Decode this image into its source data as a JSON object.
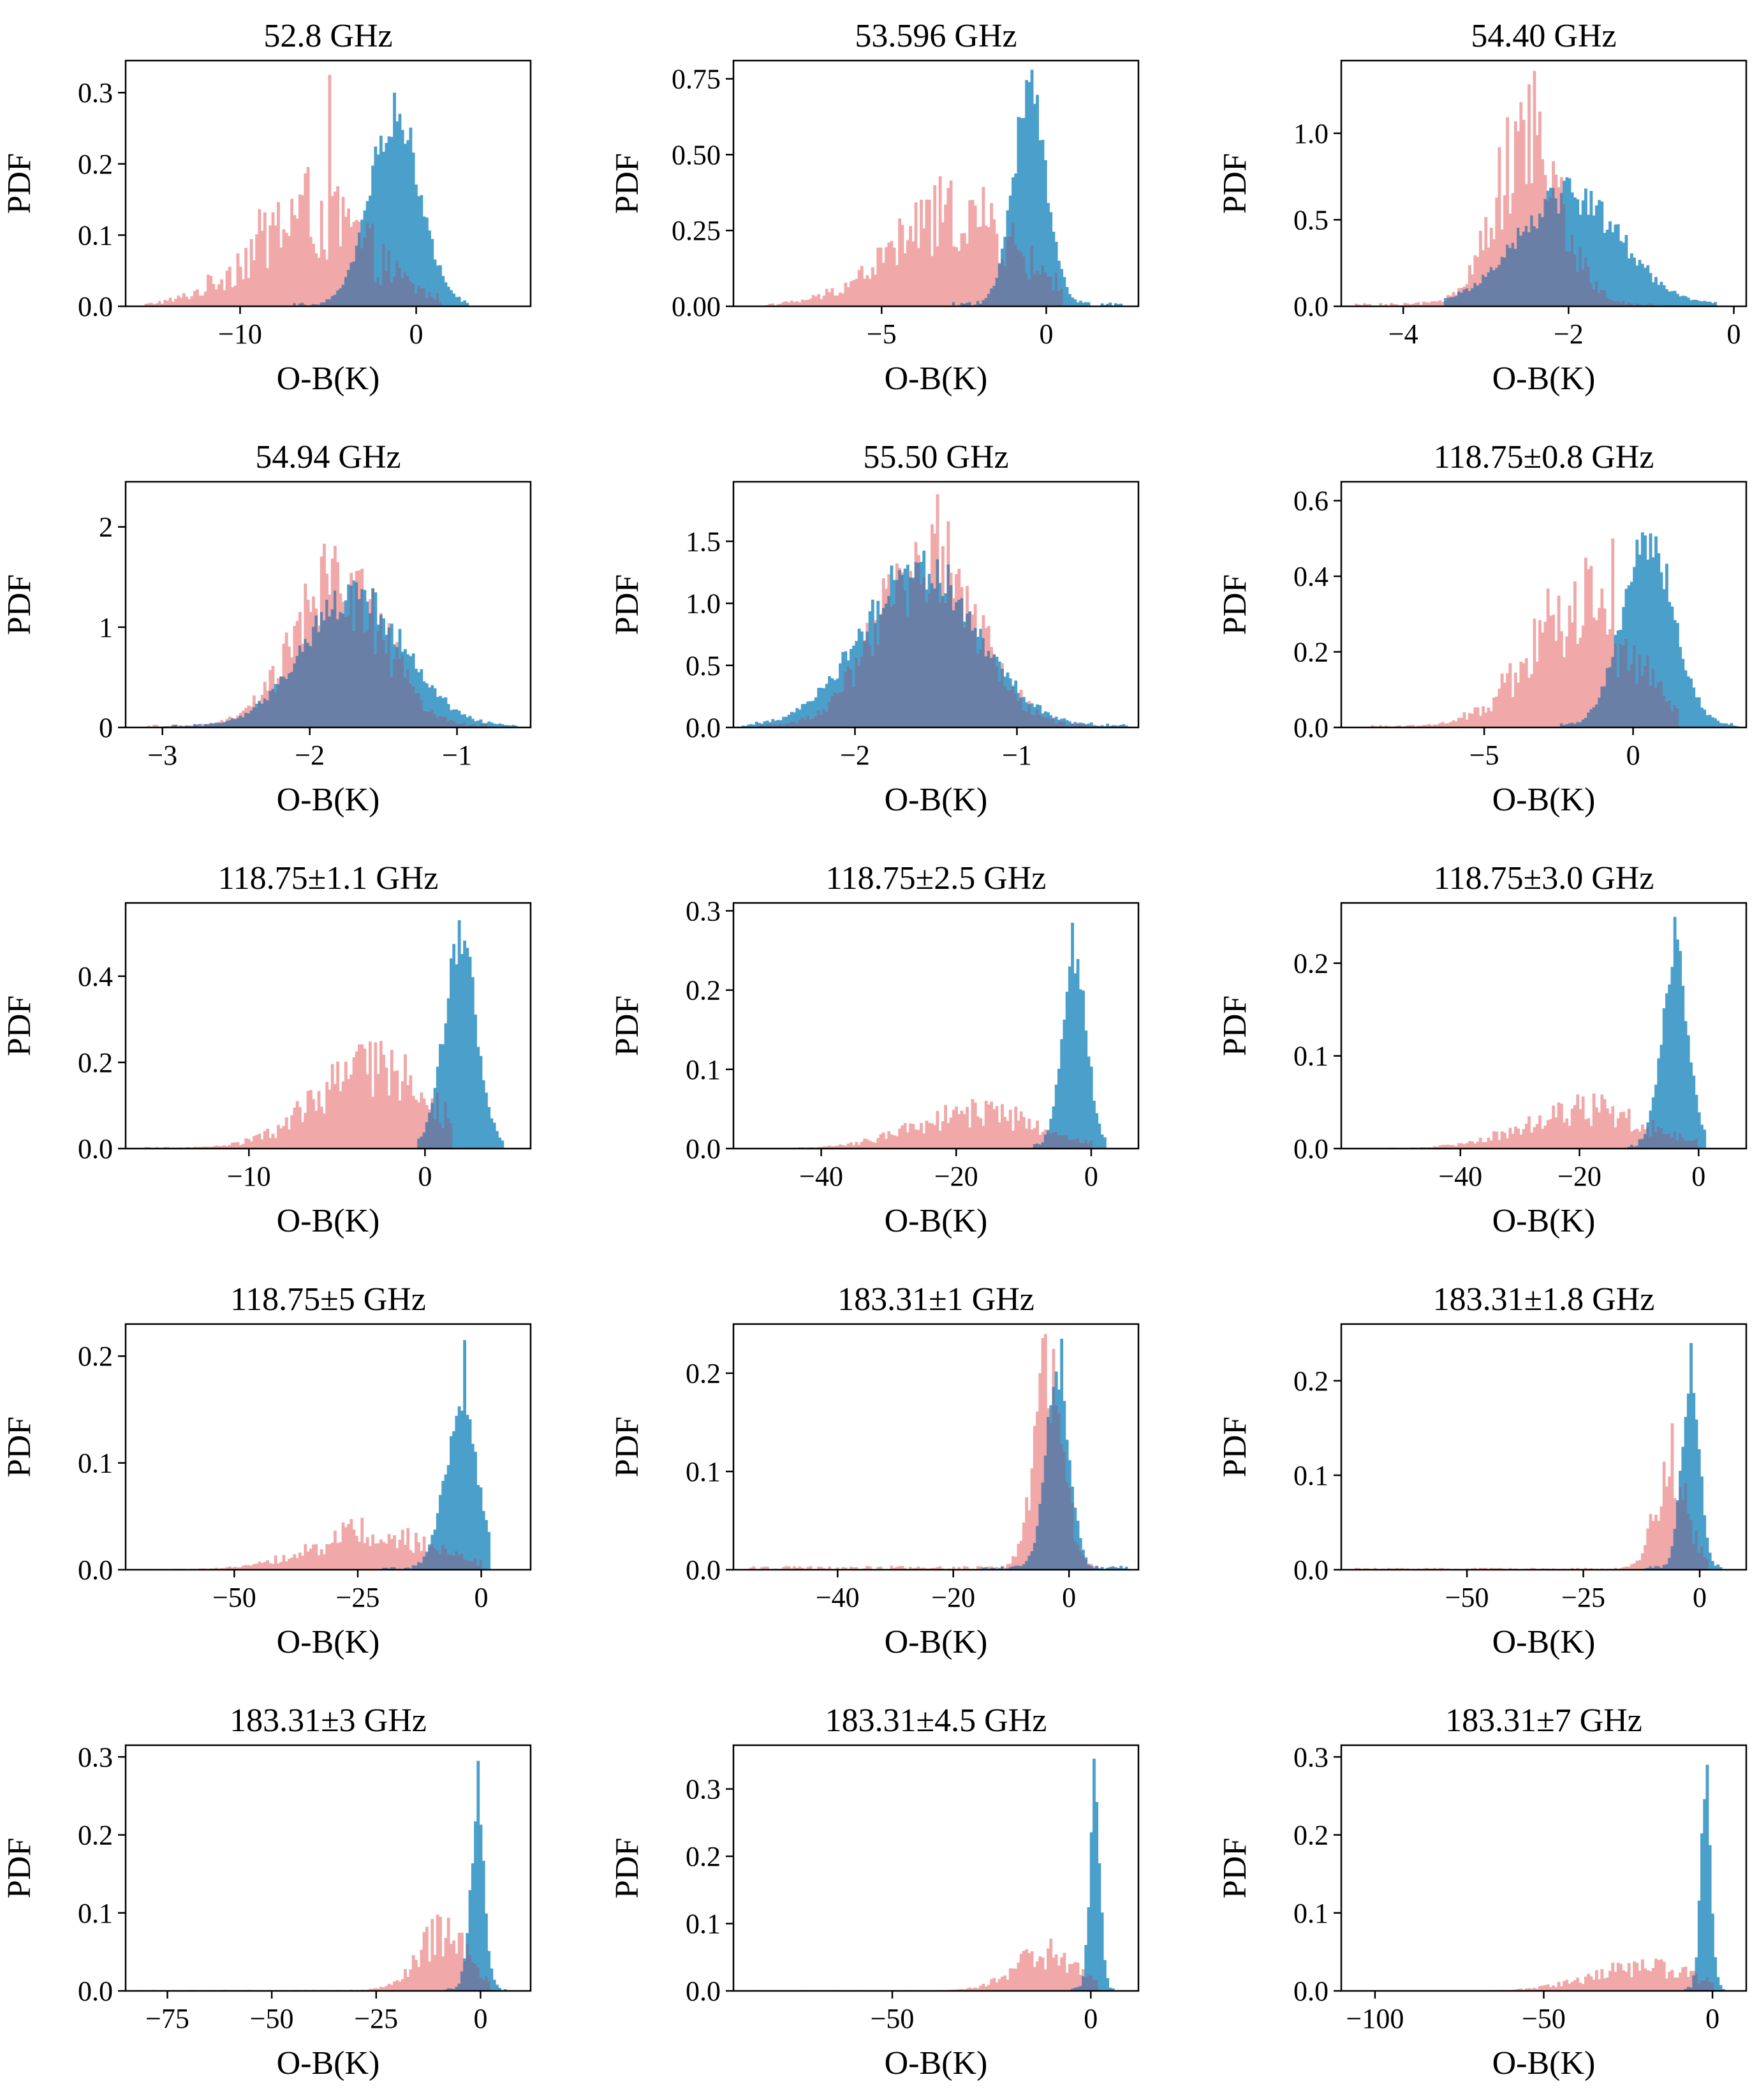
{
  "figure": {
    "ylabel": "PDF",
    "xlabel": "O-B(K)",
    "colors": {
      "series_a": "#f0a8a8",
      "series_b": "#4a9fcb",
      "overlap": "#6a7fa6"
    }
  },
  "chart_data": [
    {
      "type": "histogram",
      "title": "52.8 GHz",
      "xlabel": "O-B(K)",
      "ylabel": "PDF",
      "xlim": [
        -16.5,
        6.5
      ],
      "ylim": [
        0,
        0.345
      ],
      "xticks": [
        -10,
        0
      ],
      "xtick_labels": [
        "−10",
        "0"
      ],
      "yticks": [
        0,
        0.1,
        0.2,
        0.3
      ],
      "ytick_labels": [
        "0.0",
        "0.1",
        "0.2",
        "0.3"
      ],
      "series": [
        {
          "name": "series_a",
          "mean": -6,
          "sd": 3.3,
          "peak": 0.13,
          "noise": 0.55,
          "support": [
            -15.5,
            1.5
          ],
          "spike": {
            "x": -5,
            "y": 0.325
          }
        },
        {
          "name": "series_b",
          "mean": -1.2,
          "sd": 1.4,
          "peak": 0.27,
          "noise": 0.12,
          "support": [
            -7,
            3
          ],
          "spike": {
            "x": -1.3,
            "y": 0.3
          }
        }
      ]
    },
    {
      "type": "histogram",
      "title": "53.596 GHz",
      "xlabel": "O-B(K)",
      "ylabel": "PDF",
      "xlim": [
        -9.5,
        2.8
      ],
      "ylim": [
        0,
        0.81
      ],
      "xticks": [
        -5,
        0
      ],
      "xtick_labels": [
        "−5",
        "0"
      ],
      "yticks": [
        0,
        0.25,
        0.5,
        0.75
      ],
      "ytick_labels": [
        "0.00",
        "0.25",
        "0.50",
        "0.75"
      ],
      "series": [
        {
          "name": "series_a",
          "mean": -2.8,
          "sd": 1.9,
          "peak": 0.3,
          "noise": 0.45,
          "support": [
            -8.5,
            0.5
          ],
          "spike": null
        },
        {
          "name": "series_b",
          "mean": -0.5,
          "sd": 0.5,
          "peak": 0.7,
          "noise": 0.12,
          "support": [
            -3,
            2.3
          ],
          "spike": {
            "x": -0.4,
            "y": 0.78
          }
        }
      ]
    },
    {
      "type": "histogram",
      "title": "54.40 GHz",
      "xlabel": "O-B(K)",
      "ylabel": "PDF",
      "xlim": [
        -4.75,
        0.15
      ],
      "ylim": [
        0,
        1.42
      ],
      "xticks": [
        -4,
        -2,
        0
      ],
      "xtick_labels": [
        "−4",
        "−2",
        "0"
      ],
      "yticks": [
        0,
        0.5,
        1.0
      ],
      "ytick_labels": [
        "0.0",
        "0.5",
        "1.0"
      ],
      "series": [
        {
          "name": "series_a",
          "mean": -2.5,
          "sd": 0.4,
          "peak": 0.95,
          "noise": 0.4,
          "support": [
            -4.6,
            -0.8
          ],
          "spike": {
            "x": -2.4,
            "y": 1.36
          }
        },
        {
          "name": "series_b",
          "mean": -2.0,
          "sd": 0.62,
          "peak": 0.65,
          "noise": 0.18,
          "support": [
            -3.5,
            -0.2
          ],
          "spike": null
        }
      ]
    },
    {
      "type": "histogram",
      "title": "54.94 GHz",
      "xlabel": "O-B(K)",
      "ylabel": "PDF",
      "xlim": [
        -3.25,
        -0.5
      ],
      "ylim": [
        0,
        2.45
      ],
      "xticks": [
        -3,
        -2,
        -1
      ],
      "xtick_labels": [
        "−3",
        "−2",
        "−1"
      ],
      "yticks": [
        0,
        1,
        2
      ],
      "ytick_labels": [
        "0",
        "1",
        "2"
      ],
      "series": [
        {
          "name": "series_a",
          "mean": -1.8,
          "sd": 0.3,
          "peak": 1.45,
          "noise": 0.35,
          "support": [
            -3.1,
            -0.8
          ],
          "spike": null
        },
        {
          "name": "series_b",
          "mean": -1.7,
          "sd": 0.34,
          "peak": 1.3,
          "noise": 0.15,
          "support": [
            -3.0,
            -0.6
          ],
          "spike": null
        }
      ]
    },
    {
      "type": "histogram",
      "title": "55.50 GHz",
      "xlabel": "O-B(K)",
      "ylabel": "PDF",
      "xlim": [
        -2.75,
        -0.25
      ],
      "ylim": [
        0,
        1.98
      ],
      "xticks": [
        -2,
        -1
      ],
      "xtick_labels": [
        "−2",
        "−1"
      ],
      "yticks": [
        0,
        0.5,
        1.0,
        1.5
      ],
      "ytick_labels": [
        "0.0",
        "0.5",
        "1.0",
        "1.5"
      ],
      "series": [
        {
          "name": "series_a",
          "mean": -1.55,
          "sd": 0.3,
          "peak": 1.35,
          "noise": 0.35,
          "support": [
            -2.6,
            -0.5
          ],
          "spike": {
            "x": -1.5,
            "y": 1.88
          }
        },
        {
          "name": "series_b",
          "mean": -1.6,
          "sd": 0.35,
          "peak": 1.3,
          "noise": 0.15,
          "support": [
            -2.7,
            -0.3
          ],
          "spike": null
        }
      ]
    },
    {
      "type": "histogram",
      "title": "118.75±0.8 GHz",
      "xlabel": "O-B(K)",
      "ylabel": "PDF",
      "xlim": [
        -9.8,
        3.8
      ],
      "ylim": [
        0,
        0.65
      ],
      "xticks": [
        -5,
        0
      ],
      "xtick_labels": [
        "−5",
        "0"
      ],
      "yticks": [
        0,
        0.2,
        0.4,
        0.6
      ],
      "ytick_labels": [
        "0.0",
        "0.2",
        "0.4",
        "0.6"
      ],
      "series": [
        {
          "name": "series_a",
          "mean": -1.8,
          "sd": 1.7,
          "peak": 0.32,
          "noise": 0.45,
          "support": [
            -9,
            1.5
          ],
          "spike": {
            "x": -0.7,
            "y": 0.5
          }
        },
        {
          "name": "series_b",
          "mean": 0.5,
          "sd": 0.85,
          "peak": 0.5,
          "noise": 0.12,
          "support": [
            -2.5,
            3.5
          ],
          "spike": null
        }
      ]
    },
    {
      "type": "histogram",
      "title": "118.75±1.1 GHz",
      "xlabel": "O-B(K)",
      "ylabel": "PDF",
      "xlim": [
        -17,
        6
      ],
      "ylim": [
        0,
        0.57
      ],
      "xticks": [
        -10,
        0
      ],
      "xtick_labels": [
        "−10",
        "0"
      ],
      "yticks": [
        0,
        0.2,
        0.4
      ],
      "ytick_labels": [
        "0.0",
        "0.2",
        "0.4"
      ],
      "series": [
        {
          "name": "series_a",
          "mean": -3,
          "sd": 3.2,
          "peak": 0.18,
          "noise": 0.45,
          "support": [
            -16,
            1.5
          ],
          "spike": null
        },
        {
          "name": "series_b",
          "mean": 2,
          "sd": 0.9,
          "peak": 0.48,
          "noise": 0.12,
          "support": [
            -0.5,
            4.5
          ],
          "spike": {
            "x": 2,
            "y": 0.53
          }
        }
      ]
    },
    {
      "type": "histogram",
      "title": "118.75±2.5 GHz",
      "xlabel": "O-B(K)",
      "ylabel": "PDF",
      "xlim": [
        -53,
        7
      ],
      "ylim": [
        0,
        0.31
      ],
      "xticks": [
        -40,
        -20,
        0
      ],
      "xtick_labels": [
        "−40",
        "−20",
        "0"
      ],
      "yticks": [
        0,
        0.1,
        0.2,
        0.3
      ],
      "ytick_labels": [
        "0.0",
        "0.1",
        "0.2",
        "0.3"
      ],
      "series": [
        {
          "name": "series_a",
          "mean": -17,
          "sd": 9,
          "peak": 0.045,
          "noise": 0.45,
          "support": [
            -51,
            0
          ],
          "spike": null
        },
        {
          "name": "series_b",
          "mean": -2.5,
          "sd": 1.8,
          "peak": 0.24,
          "noise": 0.1,
          "support": [
            -9,
            2
          ],
          "spike": {
            "x": -2.7,
            "y": 0.285
          }
        }
      ]
    },
    {
      "type": "histogram",
      "title": "118.75±3.0 GHz",
      "xlabel": "O-B(K)",
      "ylabel": "PDF",
      "xlim": [
        -60,
        8
      ],
      "ylim": [
        0,
        0.265
      ],
      "xticks": [
        -40,
        -20,
        0
      ],
      "xtick_labels": [
        "−40",
        "−20",
        "0"
      ],
      "yticks": [
        0,
        0.1,
        0.2
      ],
      "ytick_labels": [
        "0.0",
        "0.1",
        "0.2"
      ],
      "series": [
        {
          "name": "series_a",
          "mean": -19,
          "sd": 10,
          "peak": 0.042,
          "noise": 0.45,
          "support": [
            -58,
            0
          ],
          "spike": null
        },
        {
          "name": "series_b",
          "mean": -4,
          "sd": 2.2,
          "peak": 0.21,
          "noise": 0.1,
          "support": [
            -12,
            1
          ],
          "spike": {
            "x": -4,
            "y": 0.25
          }
        }
      ]
    },
    {
      "type": "histogram",
      "title": "118.75±5 GHz",
      "xlabel": "O-B(K)",
      "ylabel": "PDF",
      "xlim": [
        -72,
        10
      ],
      "ylim": [
        0,
        0.23
      ],
      "xticks": [
        -50,
        -25,
        0
      ],
      "xtick_labels": [
        "−50",
        "−25",
        "0"
      ],
      "yticks": [
        0,
        0.1,
        0.2
      ],
      "ytick_labels": [
        "0.0",
        "0.1",
        "0.2"
      ],
      "series": [
        {
          "name": "series_a",
          "mean": -22,
          "sd": 12,
          "peak": 0.035,
          "noise": 0.45,
          "support": [
            -70,
            0
          ],
          "spike": null
        },
        {
          "name": "series_b",
          "mean": -4,
          "sd": 3.3,
          "peak": 0.15,
          "noise": 0.12,
          "support": [
            -20,
            2
          ],
          "spike": {
            "x": -3.3,
            "y": 0.215
          }
        }
      ]
    },
    {
      "type": "histogram",
      "title": "183.31±1 GHz",
      "xlabel": "O-B(K)",
      "ylabel": "PDF",
      "xlim": [
        -58,
        12
      ],
      "ylim": [
        0,
        0.25
      ],
      "xticks": [
        -40,
        -20,
        0
      ],
      "xtick_labels": [
        "−40",
        "−20",
        "0"
      ],
      "yticks": [
        0,
        0.1,
        0.2
      ],
      "ytick_labels": [
        "0.0",
        "0.1",
        "0.2"
      ],
      "series": [
        {
          "name": "series_a",
          "mean": -3.5,
          "sd": 2.5,
          "peak": 0.2,
          "noise": 0.3,
          "support": [
            -56,
            5
          ],
          "spike": {
            "x": -4,
            "y": 0.24
          }
        },
        {
          "name": "series_b",
          "mean": -2,
          "sd": 2.0,
          "peak": 0.2,
          "noise": 0.1,
          "support": [
            -15,
            10
          ],
          "spike": {
            "x": -1.5,
            "y": 0.235
          }
        }
      ]
    },
    {
      "type": "histogram",
      "title": "183.31±1.8 GHz",
      "xlabel": "O-B(K)",
      "ylabel": "PDF",
      "xlim": [
        -77,
        10
      ],
      "ylim": [
        0,
        0.26
      ],
      "xticks": [
        -50,
        -25,
        0
      ],
      "xtick_labels": [
        "−50",
        "−25",
        "0"
      ],
      "yticks": [
        0,
        0.1,
        0.2
      ],
      "ytick_labels": [
        "0.0",
        "0.1",
        "0.2"
      ],
      "series": [
        {
          "name": "series_a",
          "mean": -6,
          "sd": 3.5,
          "peak": 0.1,
          "noise": 0.4,
          "support": [
            -74,
            2
          ],
          "spike": {
            "x": -6,
            "y": 0.155
          }
        },
        {
          "name": "series_b",
          "mean": -2,
          "sd": 1.9,
          "peak": 0.2,
          "noise": 0.1,
          "support": [
            -12,
            5
          ],
          "spike": {
            "x": -1.8,
            "y": 0.24
          }
        }
      ]
    },
    {
      "type": "histogram",
      "title": "183.31±3 GHz",
      "xlabel": "O-B(K)",
      "ylabel": "PDF",
      "xlim": [
        -85,
        12
      ],
      "ylim": [
        0,
        0.315
      ],
      "xticks": [
        -75,
        -50,
        -25,
        0
      ],
      "xtick_labels": [
        "−75",
        "−50",
        "−25",
        "0"
      ],
      "yticks": [
        0,
        0.1,
        0.2,
        0.3
      ],
      "ytick_labels": [
        "0.0",
        "0.1",
        "0.2",
        "0.3"
      ],
      "series": [
        {
          "name": "series_a",
          "mean": -9,
          "sd": 6,
          "peak": 0.07,
          "noise": 0.45,
          "support": [
            -82,
            2
          ],
          "spike": null
        },
        {
          "name": "series_b",
          "mean": -0.8,
          "sd": 1.7,
          "peak": 0.22,
          "noise": 0.12,
          "support": [
            -10,
            6
          ],
          "spike": {
            "x": -0.8,
            "y": 0.295
          }
        }
      ]
    },
    {
      "type": "histogram",
      "title": "183.31±4.5 GHz",
      "xlabel": "O-B(K)",
      "ylabel": "PDF",
      "xlim": [
        -90,
        12
      ],
      "ylim": [
        0,
        0.365
      ],
      "xticks": [
        -50,
        0
      ],
      "xtick_labels": [
        "−50",
        "0"
      ],
      "yticks": [
        0,
        0.1,
        0.2,
        0.3
      ],
      "ytick_labels": [
        "0.0",
        "0.1",
        "0.2",
        "0.3"
      ],
      "series": [
        {
          "name": "series_a",
          "mean": -11,
          "sd": 8,
          "peak": 0.055,
          "noise": 0.45,
          "support": [
            -88,
            2
          ],
          "spike": null
        },
        {
          "name": "series_b",
          "mean": 1,
          "sd": 1.3,
          "peak": 0.28,
          "noise": 0.1,
          "support": [
            -6,
            6
          ],
          "spike": {
            "x": 1,
            "y": 0.345
          }
        }
      ]
    },
    {
      "type": "histogram",
      "title": "183.31±7 GHz",
      "xlabel": "O-B(K)",
      "ylabel": "PDF",
      "xlim": [
        -110,
        10
      ],
      "ylim": [
        0,
        0.315
      ],
      "xticks": [
        -100,
        -50,
        0
      ],
      "xtick_labels": [
        "−100",
        "−50",
        "0"
      ],
      "yticks": [
        0,
        0.1,
        0.2,
        0.3
      ],
      "ytick_labels": [
        "0.0",
        "0.1",
        "0.2",
        "0.3"
      ],
      "series": [
        {
          "name": "series_a",
          "mean": -20,
          "sd": 16,
          "peak": 0.03,
          "noise": 0.45,
          "support": [
            -105,
            0
          ],
          "spike": null
        },
        {
          "name": "series_b",
          "mean": -2,
          "sd": 1.5,
          "peak": 0.25,
          "noise": 0.1,
          "support": [
            -9,
            4
          ],
          "spike": {
            "x": -2,
            "y": 0.29
          }
        }
      ]
    }
  ]
}
